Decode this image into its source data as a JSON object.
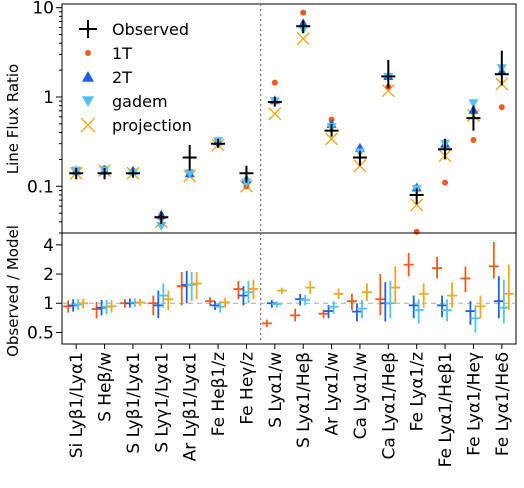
{
  "chart_data": [
    {
      "type": "scatter",
      "ylabel": "Line Flux Ratio",
      "yscale": "log",
      "ylim": [
        0.03,
        11
      ],
      "yticks": [
        0.1,
        1,
        10
      ],
      "yticklabels": [
        "0.1",
        "1",
        "10"
      ],
      "legend_position": "top-left",
      "legend": {
        "observed": "Observed",
        "t1": "1T",
        "t2": "2T",
        "gadem": "gadem",
        "projection": "projection"
      },
      "colors": {
        "observed": "#000000",
        "t1": "#f05a1e",
        "t2": "#1f5fe8",
        "gadem": "#4fc3f7",
        "projection": "#f2a81d"
      },
      "categories": [
        "Si Lyβ1/Lyα1",
        "S Heβ/w",
        "S Lyβ1/Lyα1",
        "S Lyγ1/Lyα1",
        "Ar Lyβ1/Lyα1",
        "Fe Heβ1/z",
        "Fe Heγ/z",
        "S Lyα1/w",
        "S Lyα1/Heβ",
        "Ar Lyα1/w",
        "Ca Lyα1/w",
        "Ca Lyα1/Heβ",
        "Fe Lyα1/z",
        "Fe Lyα1/Heβ1",
        "Fe Lyα1/Heγ",
        "Fe Lyα1/Heδ"
      ],
      "observed": [
        0.14,
        0.14,
        0.14,
        0.045,
        0.21,
        0.3,
        0.14,
        0.88,
        6.2,
        0.42,
        0.21,
        1.7,
        0.08,
        0.26,
        0.58,
        1.8
      ],
      "observed_err_low": [
        0.12,
        0.12,
        0.125,
        0.038,
        0.15,
        0.27,
        0.11,
        0.78,
        5.2,
        0.36,
        0.17,
        1.25,
        0.063,
        0.2,
        0.42,
        1.35
      ],
      "observed_err_high": [
        0.16,
        0.16,
        0.155,
        0.052,
        0.29,
        0.34,
        0.17,
        1.0,
        7.2,
        0.5,
        0.25,
        2.6,
        0.095,
        0.34,
        0.8,
        3.3
      ],
      "t1": [
        0.15,
        0.16,
        0.15,
        0.045,
        0.14,
        0.3,
        0.1,
        1.45,
        8.8,
        0.56,
        0.25,
        1.3,
        0.031,
        0.11,
        0.33,
        0.77
      ],
      "t2": [
        0.15,
        0.15,
        0.15,
        0.048,
        0.14,
        0.32,
        0.12,
        0.92,
        6.7,
        0.5,
        0.27,
        1.72,
        0.097,
        0.3,
        0.72,
        1.95
      ],
      "gadem": [
        0.15,
        0.15,
        0.14,
        0.036,
        0.14,
        0.32,
        0.11,
        0.9,
        5.7,
        0.46,
        0.24,
        1.68,
        0.093,
        0.3,
        0.85,
        2.1
      ],
      "projection": [
        0.14,
        0.15,
        0.14,
        0.04,
        0.13,
        0.29,
        0.1,
        0.65,
        4.5,
        0.34,
        0.17,
        1.18,
        0.062,
        0.22,
        0.62,
        1.4
      ]
    },
    {
      "type": "scatter",
      "ylabel": "Observed / Model",
      "yscale": "log",
      "ylim": [
        0.38,
        5.3
      ],
      "yticks": [
        0.5,
        1,
        2,
        4
      ],
      "yticklabels": [
        "0.5",
        "1",
        "2",
        "4"
      ],
      "reference_line": 1,
      "series": [
        {
          "key": "t1",
          "values": [
            0.93,
            0.87,
            1.0,
            1.0,
            1.5,
            1.05,
            1.4,
            0.62,
            0.75,
            0.78,
            1.05,
            1.1,
            2.5,
            2.3,
            1.8,
            2.4
          ],
          "err_low": [
            0.8,
            0.7,
            0.9,
            0.75,
            0.95,
            0.95,
            1.1,
            0.57,
            0.65,
            0.7,
            0.85,
            0.75,
            1.9,
            1.8,
            1.3,
            1.8
          ],
          "err_high": [
            1.07,
            1.03,
            1.1,
            1.2,
            2.1,
            1.15,
            1.7,
            0.68,
            0.88,
            0.86,
            1.25,
            2.0,
            3.3,
            3.0,
            2.4,
            4.3
          ]
        },
        {
          "key": "t2",
          "values": [
            0.95,
            0.9,
            1.0,
            0.95,
            1.55,
            0.95,
            1.2,
            1.0,
            1.1,
            0.83,
            0.82,
            1.0,
            0.95,
            0.95,
            0.83,
            1.05
          ],
          "err_low": [
            0.82,
            0.75,
            0.9,
            0.7,
            1.0,
            0.85,
            0.95,
            0.9,
            0.95,
            0.7,
            0.65,
            0.65,
            0.7,
            0.72,
            0.6,
            0.7
          ],
          "err_high": [
            1.1,
            1.08,
            1.12,
            1.35,
            2.15,
            1.05,
            1.5,
            1.08,
            1.25,
            0.96,
            1.0,
            1.65,
            1.2,
            1.2,
            1.05,
            1.9
          ]
        },
        {
          "key": "gadem",
          "values": [
            0.97,
            0.92,
            1.02,
            1.2,
            1.55,
            0.92,
            1.3,
            0.98,
            1.08,
            0.92,
            0.88,
            1.0,
            0.85,
            0.85,
            0.7,
            0.9
          ],
          "err_low": [
            0.85,
            0.77,
            0.92,
            0.9,
            1.05,
            0.8,
            1.0,
            0.9,
            0.95,
            0.78,
            0.7,
            0.7,
            0.62,
            0.65,
            0.5,
            0.62
          ],
          "err_high": [
            1.1,
            1.08,
            1.12,
            1.6,
            2.1,
            1.05,
            1.7,
            1.05,
            1.22,
            1.05,
            1.08,
            1.7,
            1.1,
            1.1,
            0.95,
            1.75
          ]
        },
        {
          "key": "projection",
          "values": [
            1.0,
            0.93,
            1.02,
            1.1,
            1.6,
            1.02,
            1.4,
            1.35,
            1.45,
            1.25,
            1.3,
            1.45,
            1.25,
            1.2,
            0.93,
            1.25
          ],
          "err_low": [
            0.88,
            0.8,
            0.93,
            0.85,
            1.1,
            0.9,
            1.1,
            1.25,
            1.25,
            1.1,
            1.05,
            1.0,
            0.9,
            0.9,
            0.7,
            0.85
          ],
          "err_high": [
            1.12,
            1.08,
            1.12,
            1.35,
            2.1,
            1.14,
            1.75,
            1.45,
            1.7,
            1.42,
            1.6,
            2.4,
            1.6,
            1.65,
            1.2,
            2.5
          ]
        }
      ]
    }
  ]
}
